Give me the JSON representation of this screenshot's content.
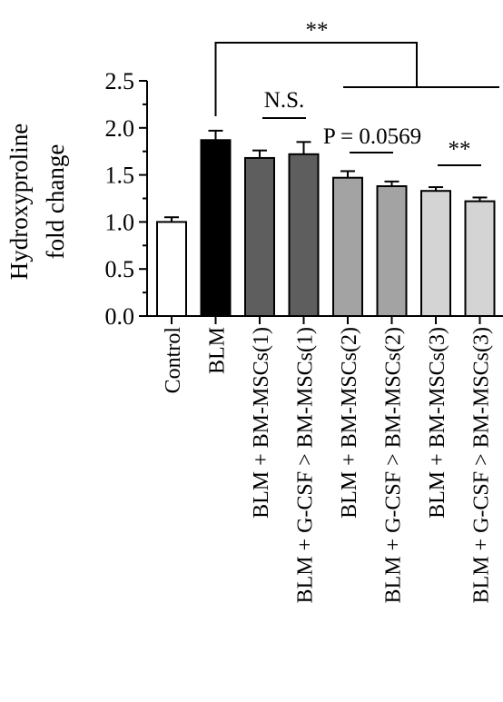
{
  "chart_data": {
    "type": "bar",
    "title": "",
    "xlabel": "",
    "ylabel": [
      "Hydroxyproline",
      "fold change"
    ],
    "ylim": [
      0,
      2.5
    ],
    "yticks": [
      0.0,
      0.5,
      1.0,
      1.5,
      2.0,
      2.5
    ],
    "ytick_labels": [
      "0.0",
      "0.5",
      "1.0",
      "1.5",
      "2.0",
      "2.5"
    ],
    "grid": false,
    "legend": "none",
    "categories": [
      "Control",
      "BLM",
      "BLM + BM-MSCs(1)",
      "BLM + G-CSF > BM-MSCs(1)",
      "BLM + BM-MSCs(2)",
      "BLM + G-CSF > BM-MSCs(2)",
      "BLM + BM-MSCs(3)",
      "BLM + G-CSF > BM-MSCs(3)"
    ],
    "values": [
      1.0,
      1.87,
      1.68,
      1.72,
      1.47,
      1.38,
      1.33,
      1.22
    ],
    "errors": [
      0.05,
      0.1,
      0.08,
      0.13,
      0.07,
      0.05,
      0.04,
      0.04
    ],
    "colors": [
      "#ffffff",
      "#000000",
      "#5e5e5e",
      "#5e5e5e",
      "#a3a3a3",
      "#a3a3a3",
      "#d4d4d4",
      "#d4d4d4"
    ],
    "annotations": [
      {
        "text": "**",
        "from": 1,
        "to": [
          4,
          5,
          6,
          7
        ]
      },
      {
        "text": "N.S.",
        "from": 2,
        "to": 3
      },
      {
        "text": "P = 0.0569",
        "from": 4,
        "to": 5
      },
      {
        "text": "**",
        "from": 6,
        "to": 7
      }
    ]
  }
}
